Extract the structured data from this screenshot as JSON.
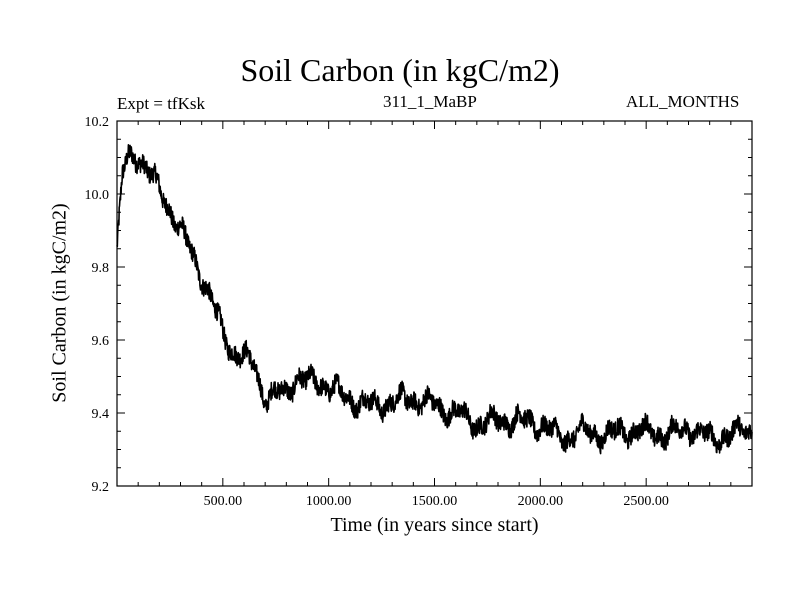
{
  "chart_data": {
    "type": "line",
    "title": "Soil Carbon (in kgC/m2)",
    "subtitle_left": "Expt = tfKsk",
    "subtitle_center": "311_1_MaBP",
    "subtitle_right": "ALL_MONTHS",
    "xlabel": "Time (in years since start)",
    "ylabel": "Soil Carbon (in kgC/m2)",
    "xlim": [
      0,
      3000
    ],
    "ylim": [
      9.2,
      10.2
    ],
    "x_ticks": [
      500,
      1000,
      1500,
      2000,
      2500
    ],
    "x_tick_labels": [
      "500.00",
      "1000.00",
      "1500.00",
      "2000.00",
      "2500.00"
    ],
    "y_ticks": [
      9.2,
      9.4,
      9.6,
      9.8,
      10.0,
      10.2
    ],
    "y_tick_labels": [
      "9.2",
      "9.4",
      "9.6",
      "9.8",
      "10.0",
      "10.2"
    ],
    "grid": false,
    "series": [
      {
        "name": "Soil Carbon",
        "color": "#000000",
        "x": [
          0,
          25,
          50,
          75,
          100,
          150,
          200,
          250,
          300,
          350,
          400,
          450,
          500,
          550,
          600,
          650,
          700,
          750,
          800,
          850,
          900,
          950,
          1000,
          1100,
          1200,
          1300,
          1400,
          1500,
          1600,
          1700,
          1800,
          1900,
          2000,
          2100,
          2200,
          2300,
          2400,
          2500,
          2600,
          2700,
          2800,
          2900,
          3000
        ],
        "y": [
          9.84,
          10.05,
          10.09,
          10.1,
          10.11,
          10.06,
          10.01,
          9.96,
          9.9,
          9.84,
          9.78,
          9.7,
          9.62,
          9.57,
          9.55,
          9.53,
          9.44,
          9.45,
          9.46,
          9.5,
          9.48,
          9.49,
          9.47,
          9.44,
          9.42,
          9.43,
          9.44,
          9.42,
          9.4,
          9.37,
          9.38,
          9.38,
          9.37,
          9.33,
          9.35,
          9.34,
          9.35,
          9.35,
          9.34,
          9.36,
          9.33,
          9.34,
          9.36
        ],
        "noise_amplitude": 0.025
      }
    ]
  }
}
